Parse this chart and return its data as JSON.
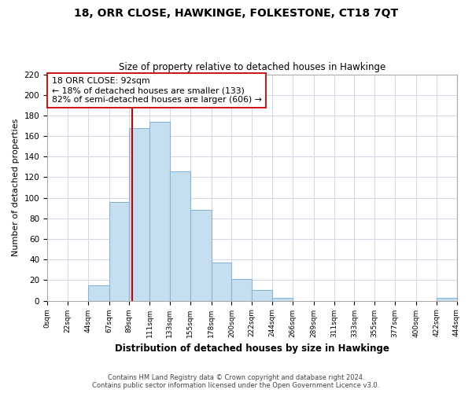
{
  "title": "18, ORR CLOSE, HAWKINGE, FOLKESTONE, CT18 7QT",
  "subtitle": "Size of property relative to detached houses in Hawkinge",
  "xlabel": "Distribution of detached houses by size in Hawkinge",
  "ylabel": "Number of detached properties",
  "bar_color": "#c5dff0",
  "bar_edge_color": "#8ab4d4",
  "bin_edges": [
    0,
    22,
    44,
    67,
    89,
    111,
    133,
    155,
    178,
    200,
    222,
    244,
    266,
    289,
    311,
    333,
    355,
    377,
    400,
    422,
    444
  ],
  "bin_labels": [
    "0sqm",
    "22sqm",
    "44sqm",
    "67sqm",
    "89sqm",
    "111sqm",
    "133sqm",
    "155sqm",
    "178sqm",
    "200sqm",
    "222sqm",
    "244sqm",
    "266sqm",
    "289sqm",
    "311sqm",
    "333sqm",
    "355sqm",
    "377sqm",
    "400sqm",
    "422sqm",
    "444sqm"
  ],
  "counts": [
    0,
    0,
    15,
    96,
    168,
    174,
    126,
    88,
    37,
    21,
    10,
    3,
    0,
    0,
    0,
    0,
    0,
    0,
    0,
    3
  ],
  "ylim": [
    0,
    220
  ],
  "yticks": [
    0,
    20,
    40,
    60,
    80,
    100,
    120,
    140,
    160,
    180,
    200,
    220
  ],
  "vline_x": 92,
  "vline_color": "#cc0000",
  "annotation_line1": "18 ORR CLOSE: 92sqm",
  "annotation_line2": "← 18% of detached houses are smaller (133)",
  "annotation_line3": "82% of semi-detached houses are larger (606) →",
  "annotation_box_color": "#ffffff",
  "annotation_box_edge": "#cc0000",
  "footnote1": "Contains HM Land Registry data © Crown copyright and database right 2024.",
  "footnote2": "Contains public sector information licensed under the Open Government Licence v3.0.",
  "bg_color": "#ffffff",
  "grid_color": "#d0d8e8"
}
